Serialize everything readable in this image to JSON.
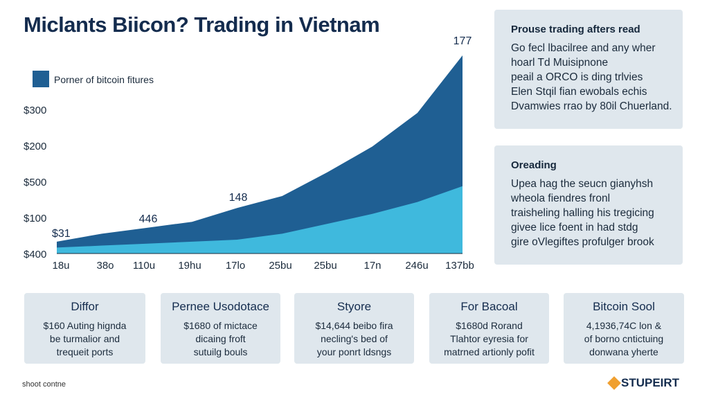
{
  "chart_data": {
    "type": "area",
    "title": "Miclants Biicon? Trading in Vietnam",
    "categories": [
      "18u",
      "38o",
      "110u",
      "19hu",
      "17lo",
      "25bu",
      "25bu",
      "17n",
      "246u",
      "137bb"
    ],
    "series": [
      {
        "name": "Porner of bitcoin fitures",
        "color": "#1f5f93",
        "values": [
          6,
          10,
          13,
          16,
          23,
          29,
          41,
          54,
          71,
          100
        ]
      },
      {
        "color": "#3fb9dd",
        "values": [
          3,
          4,
          5,
          6,
          7,
          10,
          15,
          20,
          26,
          34
        ]
      }
    ],
    "ylim": [
      0,
      100
    ],
    "y_axis_labels": [
      "$300",
      "$200",
      "$500",
      "$100",
      "$400"
    ],
    "annotations": [
      "$31",
      "446",
      "148",
      "177"
    ]
  },
  "side_panels": [
    {
      "title": "Prouse trading afters read",
      "lines": [
        "Go fecl lbacilree and any wher",
        "hoarl Td Muisipnone",
        "peail a ORCO is ding trlvies",
        "Elen Stqil fian ewobals echis",
        "Dvamwies rrao by 80il Chuerland."
      ]
    },
    {
      "title": "Oreading",
      "lines": [
        "Upea hag the seucn gianyhsh",
        "wheola fiendres fronl",
        "traisheling halling his tregicing",
        "givee lice foent in had stdg",
        "gire oVlegiftes profulger brook"
      ]
    }
  ],
  "cards": [
    {
      "title": "Diffor",
      "lines": [
        "$160 Auting hignda",
        "be turmalior and",
        "trequeit ports"
      ]
    },
    {
      "title": "Pernee Usodotace",
      "lines": [
        "$1680 of mictace",
        "dicaing froft",
        "sutuilg bouls"
      ]
    },
    {
      "title": "Styore",
      "lines": [
        "$14,644 beibo fira",
        "necling's bed of",
        "your ponrt ldsngs"
      ]
    },
    {
      "title": "For Bacoal",
      "lines": [
        "$1680d Rorand",
        "Tlahtor eyresia for",
        "matrned artionly pofit"
      ]
    },
    {
      "title": "Bitcoin Sool",
      "lines": [
        "4,1936,74C lon &",
        "of borno cntictuing",
        "donwana yherte"
      ]
    }
  ],
  "footer": "shoot contne",
  "logo": "STUPEIRT"
}
